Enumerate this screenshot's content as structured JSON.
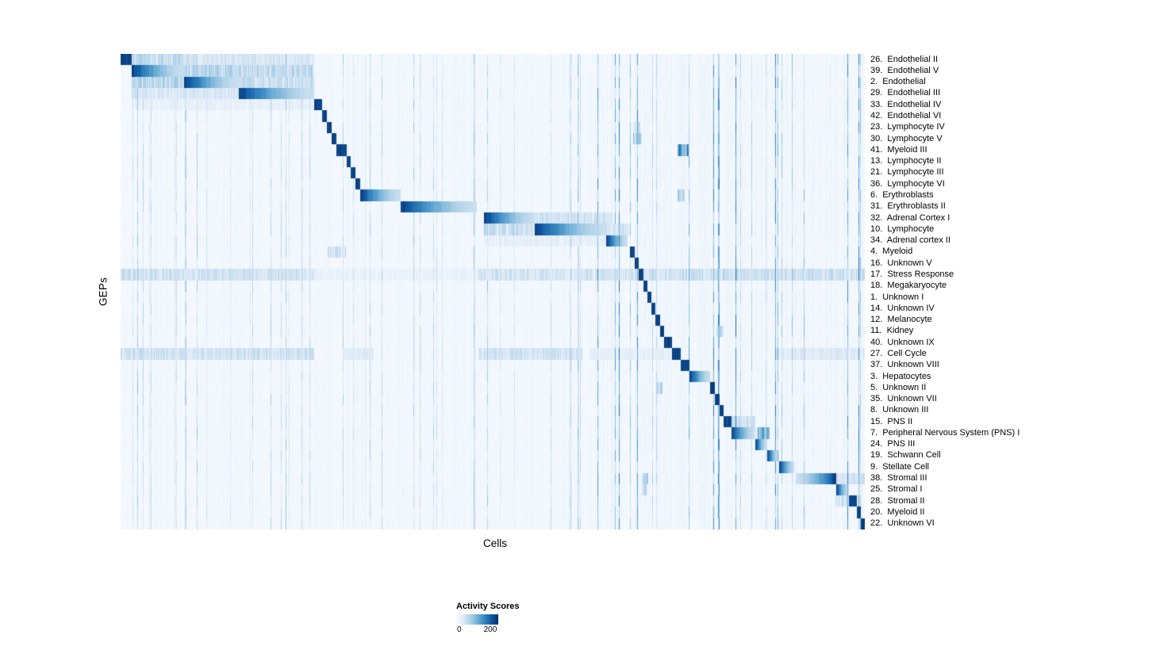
{
  "chart_data": {
    "type": "heatmap",
    "x_label": "Cells",
    "y_label": "GEPs",
    "colorbar": {
      "title": "Activity Scores",
      "min": 0,
      "max": 200,
      "min_label": "0",
      "max_label": "200"
    },
    "colormap": [
      "#f7fbff",
      "#dce9f6",
      "#b0d2e8",
      "#71b1d7",
      "#3787c0",
      "#105ba4",
      "#08306b"
    ],
    "description": "GEP activity scores per cell; each GEP row has a high-activity block of cells arranged along the diagonal. Block start/end are fractions of the x-axis; streaks are secondary lighter activity regions [start, end, intensity].",
    "rows": [
      {
        "label": "26.  Endothelial II",
        "block": [
          0.0,
          0.014
        ],
        "streaks": [
          [
            0.014,
            0.09,
            0.38
          ],
          [
            0.09,
            0.26,
            0.26
          ]
        ]
      },
      {
        "label": "39.  Endothelial V",
        "block": [
          0.014,
          0.085
        ],
        "streaks": [
          [
            0.085,
            0.26,
            0.4
          ]
        ]
      },
      {
        "label": "2.  Endothelial",
        "block": [
          0.085,
          0.158
        ],
        "streaks": [
          [
            0.014,
            0.085,
            0.42
          ],
          [
            0.158,
            0.26,
            0.34
          ]
        ]
      },
      {
        "label": "29.  Endothelial III",
        "block": [
          0.158,
          0.26
        ],
        "streaks": [
          [
            0.014,
            0.158,
            0.25
          ]
        ]
      },
      {
        "label": "33.  Endothelial IV",
        "block": [
          0.26,
          0.27
        ],
        "streaks": [
          [
            0.014,
            0.26,
            0.13
          ]
        ]
      },
      {
        "label": "42.  Endothelial VI",
        "block": [
          0.27,
          0.277
        ],
        "streaks": []
      },
      {
        "label": "23.  Lymphocyte IV",
        "block": [
          0.277,
          0.283
        ],
        "streaks": [
          [
            0.688,
            0.698,
            0.3
          ]
        ]
      },
      {
        "label": "30.  Lymphocyte V",
        "block": [
          0.283,
          0.289
        ],
        "streaks": [
          [
            0.688,
            0.7,
            0.45
          ]
        ]
      },
      {
        "label": "41.  Myeloid III",
        "block": [
          0.289,
          0.303
        ],
        "streaks": [
          [
            0.748,
            0.764,
            0.8
          ]
        ]
      },
      {
        "label": "13.  Lymphocyte II",
        "block": [
          0.303,
          0.309
        ],
        "streaks": []
      },
      {
        "label": "21.  Lymphocyte III",
        "block": [
          0.309,
          0.315
        ],
        "streaks": []
      },
      {
        "label": "36.  Lymphocyte VI",
        "block": [
          0.315,
          0.321
        ],
        "streaks": []
      },
      {
        "label": "6.  Erythroblasts",
        "block": [
          0.321,
          0.376
        ],
        "streaks": [
          [
            0.748,
            0.757,
            0.5
          ]
        ]
      },
      {
        "label": "31.  Erythroblasts II",
        "block": [
          0.376,
          0.478
        ],
        "streaks": []
      },
      {
        "label": "32.  Adrenal Cortex I",
        "block": [
          0.488,
          0.556
        ],
        "streaks": [
          [
            0.556,
            0.66,
            0.28
          ]
        ]
      },
      {
        "label": "10.  Lymphocyte",
        "block": [
          0.556,
          0.652
        ],
        "streaks": [
          [
            0.488,
            0.556,
            0.35
          ],
          [
            0.652,
            0.683,
            0.3
          ]
        ]
      },
      {
        "label": "34.  Adrenal cortex II",
        "block": [
          0.652,
          0.681
        ],
        "streaks": [
          [
            0.488,
            0.652,
            0.15
          ]
        ]
      },
      {
        "label": "4.  Myeloid",
        "block": [
          0.684,
          0.69
        ],
        "streaks": [
          [
            0.278,
            0.302,
            0.3
          ]
        ]
      },
      {
        "label": "16.  Unknown V",
        "block": [
          0.69,
          0.696
        ],
        "streaks": []
      },
      {
        "label": "17.  Stress Response",
        "block": [
          0.696,
          0.702
        ],
        "streaks": [
          [
            0.0,
            0.26,
            0.3
          ],
          [
            0.26,
            0.48,
            0.12
          ],
          [
            0.48,
            0.75,
            0.28
          ],
          [
            0.75,
            1.0,
            0.33
          ]
        ]
      },
      {
        "label": "18.  Megakaryocyte",
        "block": [
          0.702,
          0.707
        ],
        "streaks": []
      },
      {
        "label": "1.  Unknown I",
        "block": [
          0.707,
          0.713
        ],
        "streaks": []
      },
      {
        "label": "14.  Unknown IV",
        "block": [
          0.713,
          0.718
        ],
        "streaks": []
      },
      {
        "label": "12.  Melanocyte",
        "block": [
          0.718,
          0.724
        ],
        "streaks": []
      },
      {
        "label": "11.  Kidney",
        "block": [
          0.724,
          0.73
        ],
        "streaks": [
          [
            0.8,
            0.81,
            0.45
          ]
        ]
      },
      {
        "label": "40.  Unknown IX",
        "block": [
          0.73,
          0.74
        ],
        "streaks": []
      },
      {
        "label": "27.  Cell Cycle",
        "block": [
          0.74,
          0.752
        ],
        "streaks": [
          [
            0.0,
            0.26,
            0.3
          ],
          [
            0.3,
            0.34,
            0.2
          ],
          [
            0.48,
            0.62,
            0.28
          ],
          [
            0.63,
            0.75,
            0.15
          ],
          [
            0.88,
            1.0,
            0.22
          ]
        ]
      },
      {
        "label": "37.  Unknown VIII",
        "block": [
          0.752,
          0.764
        ],
        "streaks": []
      },
      {
        "label": "3.  Hepatocytes",
        "block": [
          0.764,
          0.792
        ],
        "streaks": []
      },
      {
        "label": "5.  Unknown II",
        "block": [
          0.792,
          0.798
        ],
        "streaks": [
          [
            0.72,
            0.728,
            0.4
          ]
        ]
      },
      {
        "label": "35.  Unknown VII",
        "block": [
          0.798,
          0.804
        ],
        "streaks": []
      },
      {
        "label": "8.  Unknown III",
        "block": [
          0.804,
          0.81
        ],
        "streaks": []
      },
      {
        "label": "15.  PNS II",
        "block": [
          0.81,
          0.82
        ],
        "streaks": [
          [
            0.82,
            0.852,
            0.3
          ]
        ]
      },
      {
        "label": "7.  Peripheral Nervous System (PNS) I",
        "block": [
          0.82,
          0.852
        ],
        "streaks": [
          [
            0.855,
            0.872,
            0.7
          ]
        ]
      },
      {
        "label": "24.  PNS III",
        "block": [
          0.852,
          0.868
        ],
        "streaks": []
      },
      {
        "label": "19.  Schwann Cell",
        "block": [
          0.868,
          0.884
        ],
        "streaks": []
      },
      {
        "label": "9.  Stellate Cell",
        "block": [
          0.884,
          0.905
        ],
        "streaks": []
      },
      {
        "label": "38.  Stromal III",
        "block": [
          0.907,
          0.961
        ],
        "dark_side": "end",
        "streaks": [
          [
            0.7,
            0.708,
            0.55
          ],
          [
            0.96,
            1.0,
            0.3
          ]
        ]
      },
      {
        "label": "25.  Stromal I",
        "block": [
          0.961,
          0.978
        ],
        "streaks": [
          [
            0.7,
            0.706,
            0.35
          ]
        ]
      },
      {
        "label": "28.  Stromal II",
        "block": [
          0.978,
          0.989
        ],
        "streaks": [
          [
            0.96,
            0.978,
            0.3
          ]
        ]
      },
      {
        "label": "20.  Myeloid II",
        "block": [
          0.989,
          0.994
        ],
        "streaks": []
      },
      {
        "label": "22.  Unknown VI",
        "block": [
          0.994,
          1.0
        ],
        "streaks": []
      }
    ]
  }
}
